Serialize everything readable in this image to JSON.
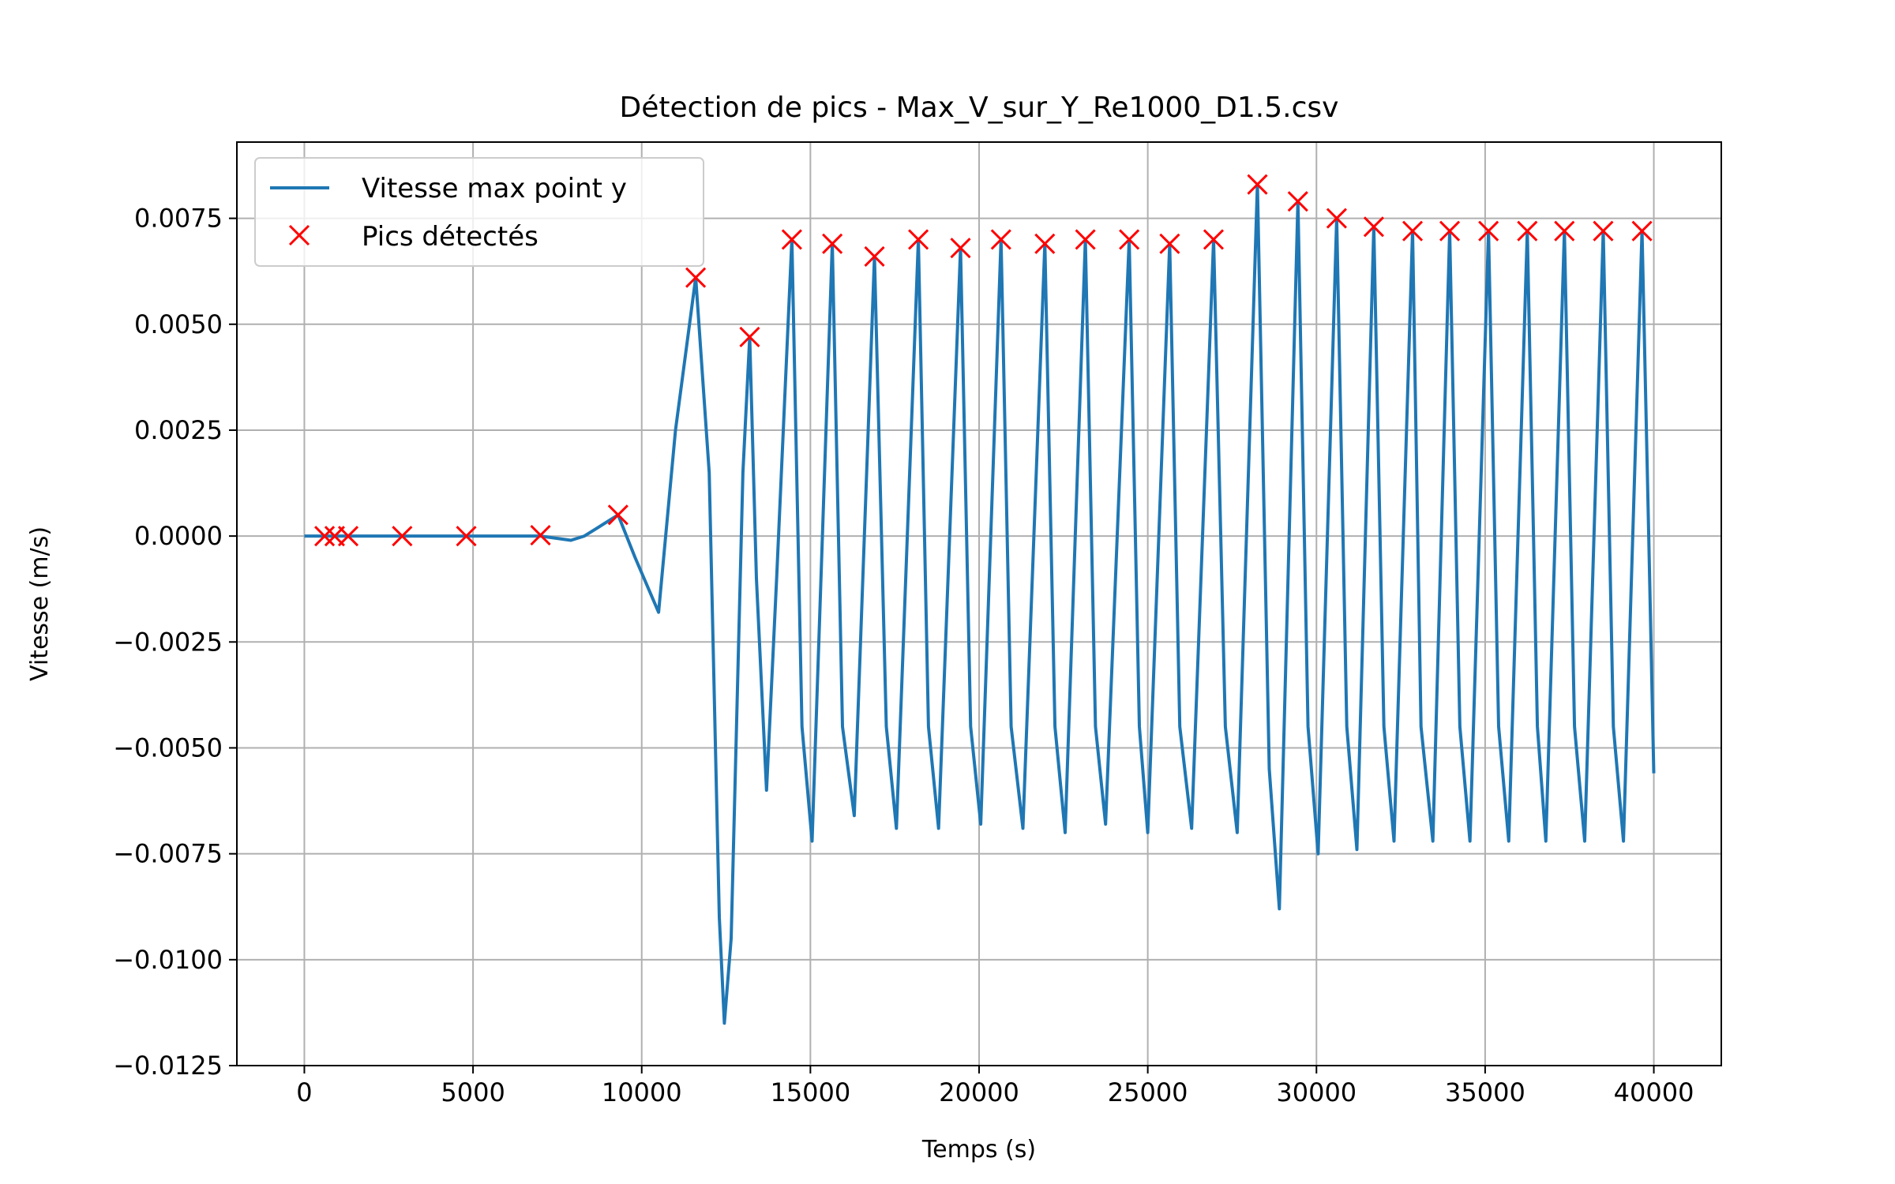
{
  "chart_data": {
    "type": "line",
    "title": "Détection de pics - Max_V_sur_Y_Re1000_D1.5.csv",
    "xlabel": "Temps (s)",
    "ylabel": "Vitesse (m/s)",
    "xlim": [
      -2000,
      42000
    ],
    "ylim": [
      -0.0125,
      0.0093
    ],
    "xticks": [
      0,
      5000,
      10000,
      15000,
      20000,
      25000,
      30000,
      35000,
      40000
    ],
    "xtick_labels": [
      "0",
      "5000",
      "10000",
      "15000",
      "20000",
      "25000",
      "30000",
      "35000",
      "40000"
    ],
    "yticks": [
      -0.0125,
      -0.01,
      -0.0075,
      -0.005,
      -0.0025,
      0,
      0.0025,
      0.005,
      0.0075
    ],
    "ytick_labels": [
      "−0.0125",
      "−0.0100",
      "−0.0075",
      "−0.0050",
      "−0.0025",
      "0.0000",
      "0.0025",
      "0.0050",
      "0.0075"
    ],
    "grid": true,
    "legend_position": "upper-left",
    "series": [
      {
        "name": "Vitesse max point y",
        "color": "#1f77b4",
        "marker": "line",
        "x": [
          0,
          600,
          900,
          1300,
          2100,
          2900,
          3800,
          4800,
          5900,
          7000,
          7900,
          8300,
          8700,
          9300,
          9800,
          10500,
          11000,
          11600,
          12000,
          12300,
          12450,
          12650,
          13000,
          13200,
          13400,
          13700,
          14000,
          14450,
          14750,
          15050,
          15650,
          15950,
          16300,
          16900,
          17250,
          17550,
          18200,
          18500,
          18800,
          19450,
          19750,
          20050,
          20650,
          20950,
          21300,
          21950,
          22250,
          22550,
          23150,
          23450,
          23750,
          24450,
          24750,
          25000,
          25650,
          25950,
          26300,
          26950,
          27300,
          27650,
          28250,
          28600,
          28900,
          29450,
          29750,
          30050,
          30600,
          30900,
          31200,
          31700,
          32000,
          32300,
          32850,
          33100,
          33450,
          33950,
          34250,
          34550,
          35100,
          35400,
          35700,
          36250,
          36550,
          36800,
          37350,
          37650,
          37950,
          38500,
          38800,
          39100,
          39650,
          39850,
          40000
        ],
        "y": [
          0,
          0,
          0,
          0,
          0,
          0,
          0,
          0,
          0,
          0,
          -0.0001,
          0,
          0.0002,
          0.0005,
          -0.0005,
          -0.0018,
          0.0025,
          0.0061,
          0.0015,
          -0.009,
          -0.0115,
          -0.0095,
          0.0015,
          0.0047,
          -0.001,
          -0.006,
          -0.001,
          0.007,
          -0.0045,
          -0.0072,
          0.0069,
          -0.0045,
          -0.0066,
          0.0066,
          -0.0045,
          -0.0069,
          0.007,
          -0.0045,
          -0.0069,
          0.0068,
          -0.0045,
          -0.0068,
          0.007,
          -0.0045,
          -0.0069,
          0.0069,
          -0.0045,
          -0.007,
          0.007,
          -0.0045,
          -0.0068,
          0.007,
          -0.0045,
          -0.007,
          0.0069,
          -0.0045,
          -0.0069,
          0.007,
          -0.0045,
          -0.007,
          0.0083,
          -0.0055,
          -0.0088,
          0.0079,
          -0.0045,
          -0.0075,
          0.0075,
          -0.0045,
          -0.0074,
          0.0073,
          -0.0045,
          -0.0072,
          0.0072,
          -0.0045,
          -0.0072,
          0.0072,
          -0.0045,
          -0.0072,
          0.0072,
          -0.0045,
          -0.0072,
          0.0072,
          -0.0045,
          -0.0072,
          0.0072,
          -0.0045,
          -0.0072,
          0.0072,
          -0.0045,
          -0.0072,
          0.0072,
          0.0,
          -0.0056
        ]
      },
      {
        "name": "Pics détectés",
        "color": "#ff0000",
        "marker": "x",
        "x": [
          600,
          900,
          1300,
          2900,
          4800,
          7000,
          9300,
          11600,
          13200,
          14450,
          15650,
          16900,
          18200,
          19450,
          20650,
          21950,
          23150,
          24450,
          25650,
          26950,
          28250,
          29450,
          30600,
          31700,
          32850,
          33950,
          35100,
          36250,
          37350,
          38500,
          39650
        ],
        "y": [
          0,
          0,
          0,
          0,
          0,
          2e-05,
          0.0005,
          0.0061,
          0.0047,
          0.007,
          0.0069,
          0.0066,
          0.007,
          0.0068,
          0.007,
          0.0069,
          0.007,
          0.007,
          0.0069,
          0.007,
          0.0083,
          0.0079,
          0.0075,
          0.0073,
          0.0072,
          0.0072,
          0.0072,
          0.0072,
          0.0072,
          0.0072,
          0.0072
        ]
      }
    ]
  }
}
